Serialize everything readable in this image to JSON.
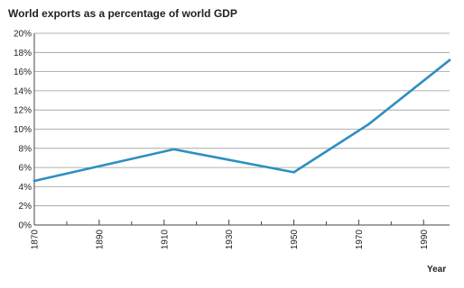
{
  "chart_data": {
    "type": "line",
    "title": "World exports as a percentage of world GDP",
    "xlabel": "Year",
    "ylabel": "",
    "x_ticks": [
      "1870",
      "1890",
      "1910",
      "1930",
      "1950",
      "1970",
      "1990"
    ],
    "y_ticks": [
      "0%",
      "2%",
      "4%",
      "6%",
      "8%",
      "10%",
      "12%",
      "14%",
      "16%",
      "18%",
      "20%"
    ],
    "xlim": [
      1870,
      1998
    ],
    "ylim": [
      0,
      20
    ],
    "grid": "horizontal",
    "series": [
      {
        "x": [
          1870,
          1913,
          1950,
          1973,
          1998
        ],
        "values": [
          4.6,
          7.9,
          5.5,
          10.5,
          17.2
        ]
      }
    ],
    "colors": {
      "line": "#2e8fc1",
      "grid": "#9a9a9a",
      "axis": "#444444"
    }
  }
}
